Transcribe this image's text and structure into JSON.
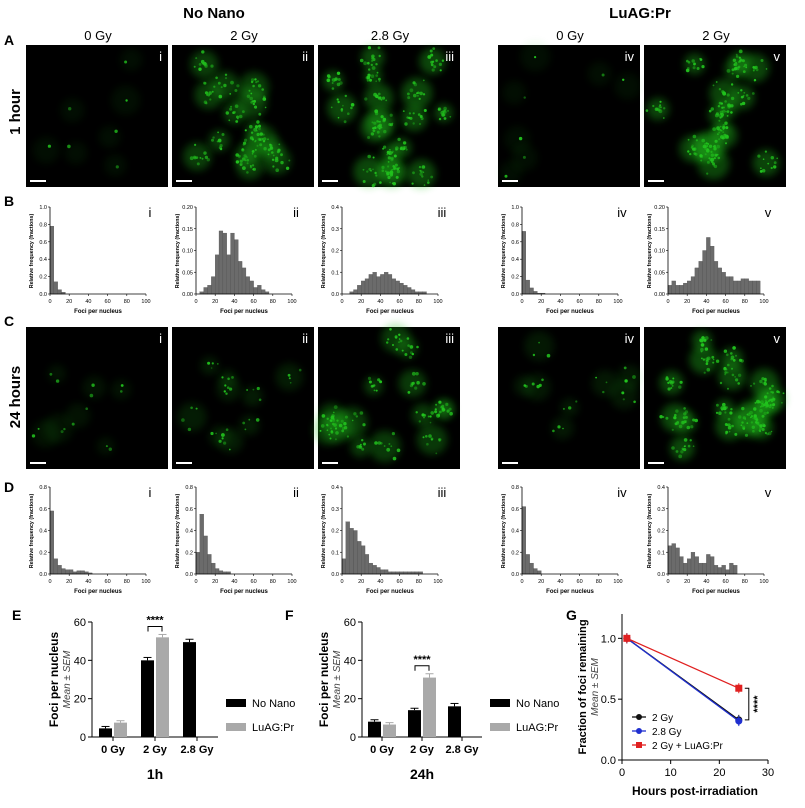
{
  "groups": [
    "No Nano",
    "LuAG:Pr"
  ],
  "dose_labels": [
    "0 Gy",
    "2 Gy",
    "2.8 Gy",
    "0 Gy",
    "2 Gy"
  ],
  "roman": [
    "i",
    "ii",
    "iii",
    "iv",
    "v"
  ],
  "row_labels": {
    "1h": "1 hour",
    "24h": "24 hours"
  },
  "panel_letters": [
    "A",
    "B",
    "C",
    "D",
    "E",
    "F",
    "G"
  ],
  "colors": {
    "foci": "#22c21e",
    "hist": "#6b6b6b",
    "no_nano": "#000000",
    "luag": "#a9a9a9",
    "black": "#111111",
    "blue": "#1f2fd0",
    "red": "#e02020"
  },
  "histogram": {
    "ylabel": "Relative frequency (fractions)",
    "xlabel": "Foci per nucleus",
    "xticks": [
      0,
      20,
      40,
      60,
      80,
      100
    ],
    "rowB_yticks": [
      [
        "0.0",
        "0.2",
        "0.4",
        "0.6",
        "0.8",
        "1.0"
      ],
      [
        "0.00",
        "0.05",
        "0.10",
        "0.15",
        "0.20"
      ],
      [
        "0.0",
        "0.1",
        "0.2",
        "0.3",
        "0.4"
      ],
      [
        "0.0",
        "0.2",
        "0.4",
        "0.6",
        "0.8",
        "1.0"
      ],
      [
        "0.00",
        "0.05",
        "0.10",
        "0.15",
        "0.20"
      ]
    ],
    "rowD_yticks": [
      [
        "0.0",
        "0.2",
        "0.4",
        "0.6",
        "0.8"
      ],
      [
        "0.0",
        "0.2",
        "0.4",
        "0.6",
        "0.8"
      ],
      [
        "0.0",
        "0.1",
        "0.2",
        "0.3",
        "0.4"
      ],
      [
        "0.0",
        "0.2",
        "0.4",
        "0.6",
        "0.8"
      ],
      [
        "0.0",
        "0.1",
        "0.2",
        "0.3",
        "0.4"
      ]
    ]
  },
  "chart_data": [
    {
      "panel": "B-i",
      "type": "bar",
      "bin_width": 4,
      "ylim": [
        0,
        1.0
      ],
      "values": [
        0.78,
        0.14,
        0.05,
        0.02
      ]
    },
    {
      "panel": "B-ii",
      "type": "bar",
      "bin_width": 4,
      "ylim": [
        0,
        0.2
      ],
      "values": [
        0,
        0.005,
        0.015,
        0.02,
        0.04,
        0.09,
        0.145,
        0.14,
        0.09,
        0.14,
        0.125,
        0.075,
        0.06,
        0.04,
        0.03,
        0.015,
        0.02,
        0.01,
        0.005
      ]
    },
    {
      "panel": "B-iii",
      "type": "bar",
      "bin_width": 4,
      "ylim": [
        0,
        0.4
      ],
      "values": [
        0,
        0,
        0.01,
        0.02,
        0.04,
        0.06,
        0.07,
        0.09,
        0.1,
        0.08,
        0.09,
        0.1,
        0.09,
        0.07,
        0.06,
        0.05,
        0.04,
        0.03,
        0.02,
        0.01,
        0.01,
        0.01
      ]
    },
    {
      "panel": "B-iv",
      "type": "bar",
      "bin_width": 4,
      "ylim": [
        0,
        1.0
      ],
      "values": [
        0.72,
        0.16,
        0.07,
        0.03,
        0.01,
        0.01
      ]
    },
    {
      "panel": "B-v",
      "type": "bar",
      "bin_width": 4,
      "ylim": [
        0,
        0.2
      ],
      "values": [
        0.02,
        0.03,
        0.02,
        0.02,
        0.025,
        0.03,
        0.04,
        0.06,
        0.075,
        0.1,
        0.13,
        0.11,
        0.075,
        0.06,
        0.05,
        0.04,
        0.04,
        0.03,
        0.03,
        0.035,
        0.035,
        0.03,
        0.03,
        0.03
      ]
    },
    {
      "panel": "D-i",
      "type": "bar",
      "bin_width": 4,
      "ylim": [
        0,
        0.8
      ],
      "values": [
        0.58,
        0.14,
        0.08,
        0.05,
        0.04,
        0.04,
        0.02,
        0.03,
        0.03,
        0.02,
        0.01
      ]
    },
    {
      "panel": "D-ii",
      "type": "bar",
      "bin_width": 4,
      "ylim": [
        0,
        0.8
      ],
      "values": [
        0.2,
        0.55,
        0.35,
        0.18,
        0.1,
        0.05,
        0.03,
        0.02,
        0.02
      ]
    },
    {
      "panel": "D-iii",
      "type": "bar",
      "bin_width": 4,
      "ylim": [
        0,
        0.4
      ],
      "values": [
        0.07,
        0.24,
        0.21,
        0.2,
        0.15,
        0.13,
        0.09,
        0.05,
        0.04,
        0.03,
        0.02,
        0.02,
        0.01,
        0.01,
        0.01,
        0.01,
        0.01,
        0.01,
        0.01,
        0.01,
        0.01
      ]
    },
    {
      "panel": "D-iv",
      "type": "bar",
      "bin_width": 4,
      "ylim": [
        0,
        0.8
      ],
      "values": [
        0.62,
        0.18,
        0.1,
        0.05,
        0.03
      ]
    },
    {
      "panel": "D-v",
      "type": "bar",
      "bin_width": 4,
      "ylim": [
        0,
        0.4
      ],
      "values": [
        0.13,
        0.14,
        0.12,
        0.08,
        0.05,
        0.07,
        0.1,
        0.08,
        0.05,
        0.05,
        0.09,
        0.08,
        0.04,
        0.03,
        0.04,
        0.02,
        0.05,
        0.04
      ]
    },
    {
      "panel": "E",
      "type": "bar",
      "title": "1h",
      "ylabel": "Foci per nucleus",
      "ylabel_sub": "Mean ± SEM",
      "ylim": [
        0,
        60
      ],
      "yticks": [
        0,
        20,
        40,
        60
      ],
      "categories": [
        "0 Gy",
        "2 Gy",
        "2.8 Gy"
      ],
      "series": [
        {
          "name": "No Nano",
          "values": [
            4.5,
            40,
            49.5
          ],
          "errors": [
            1,
            1.5,
            1.5
          ]
        },
        {
          "name": "LuAG:Pr",
          "values": [
            7.5,
            52,
            null
          ],
          "errors": [
            1,
            1.5,
            null
          ]
        }
      ],
      "significance": "****"
    },
    {
      "panel": "F",
      "type": "bar",
      "title": "24h",
      "ylabel": "Foci per nucleus",
      "ylabel_sub": "Mean ± SEM",
      "ylim": [
        0,
        60
      ],
      "yticks": [
        0,
        20,
        40,
        60
      ],
      "categories": [
        "0 Gy",
        "2 Gy",
        "2.8 Gy"
      ],
      "series": [
        {
          "name": "No Nano",
          "values": [
            8,
            14,
            16
          ],
          "errors": [
            1,
            1,
            1.5
          ]
        },
        {
          "name": "LuAG:Pr",
          "values": [
            6.5,
            31,
            null
          ],
          "errors": [
            1,
            2,
            null
          ]
        }
      ],
      "significance": "****"
    },
    {
      "panel": "G",
      "type": "line",
      "ylabel": "Fraction of foci remaining",
      "ylabel_sub": "Mean ± SEM",
      "xlabel": "Hours post-irradiation",
      "xlim": [
        0,
        30
      ],
      "ylim": [
        0,
        1.2
      ],
      "xticks": [
        0,
        10,
        20,
        30
      ],
      "yticks": [
        "0.0",
        "0.5",
        "1.0"
      ],
      "series": [
        {
          "name": "2 Gy",
          "x": [
            1,
            24
          ],
          "y": [
            1.0,
            0.33
          ]
        },
        {
          "name": "2.8 Gy",
          "x": [
            1,
            24
          ],
          "y": [
            1.0,
            0.32
          ]
        },
        {
          "name": "2 Gy + LuAG:Pr",
          "x": [
            1,
            24
          ],
          "y": [
            1.0,
            0.59
          ]
        }
      ],
      "significance": "****"
    }
  ]
}
